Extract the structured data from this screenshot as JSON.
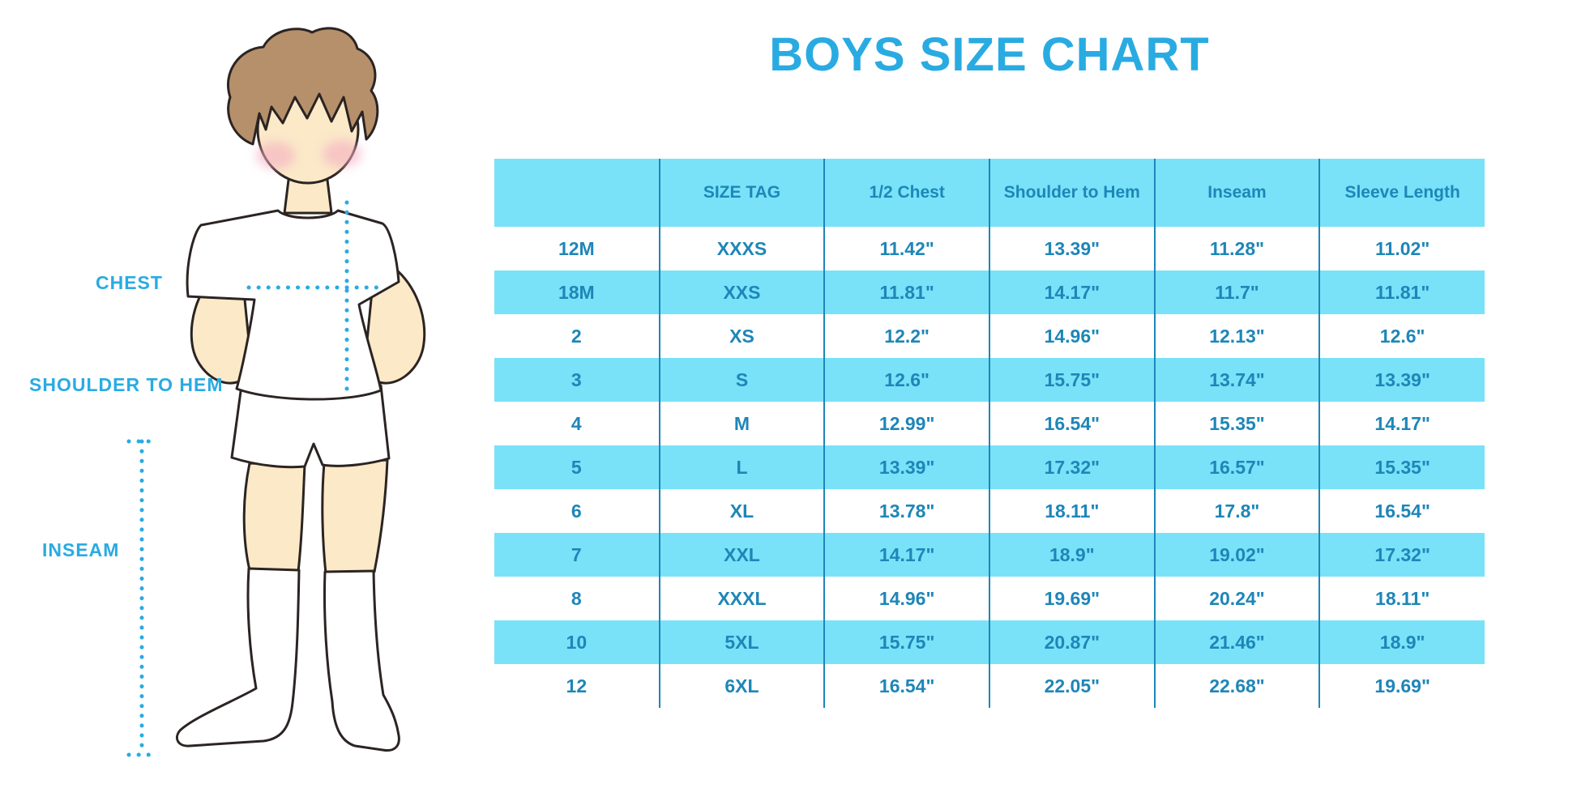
{
  "title": "BOYS SIZE CHART",
  "diagram": {
    "chest_label": "CHEST",
    "shoulder_to_hem_label": "SHOULDER TO HEM",
    "inseam_label": "INSEAM"
  },
  "chart_data": {
    "type": "table",
    "title": "BOYS SIZE CHART",
    "columns": [
      "",
      "SIZE TAG",
      "1/2 Chest",
      "Shoulder to Hem",
      "Inseam",
      "Sleeve Length"
    ],
    "rows": [
      [
        "12M",
        "XXXS",
        "11.42\"",
        "13.39\"",
        "11.28\"",
        "11.02\""
      ],
      [
        "18M",
        "XXS",
        "11.81\"",
        "14.17\"",
        "11.7\"",
        "11.81\""
      ],
      [
        "2",
        "XS",
        "12.2\"",
        "14.96\"",
        "12.13\"",
        "12.6\""
      ],
      [
        "3",
        "S",
        "12.6\"",
        "15.75\"",
        "13.74\"",
        "13.39\""
      ],
      [
        "4",
        "M",
        "12.99\"",
        "16.54\"",
        "15.35\"",
        "14.17\""
      ],
      [
        "5",
        "L",
        "13.39\"",
        "17.32\"",
        "16.57\"",
        "15.35\""
      ],
      [
        "6",
        "XL",
        "13.78\"",
        "18.11\"",
        "17.8\"",
        "16.54\""
      ],
      [
        "7",
        "XXL",
        "14.17\"",
        "18.9\"",
        "19.02\"",
        "17.32\""
      ],
      [
        "8",
        "XXXL",
        "14.96\"",
        "19.69\"",
        "20.24\"",
        "18.11\""
      ],
      [
        "10",
        "5XL",
        "15.75\"",
        "20.87\"",
        "21.46\"",
        "18.9\""
      ],
      [
        "12",
        "6XL",
        "16.54\"",
        "22.05\"",
        "22.68\"",
        "19.69\""
      ]
    ],
    "row_striping": "white / light-cyan alternating, header light-cyan",
    "grid": "vertical dividers only"
  },
  "colors": {
    "accent_blue": "#29ABE2",
    "table_text_blue": "#1E86B8",
    "row_highlight_cyan": "#79E2F8",
    "divider_blue": "#1E86B8",
    "skin": "#FBE9C8",
    "hair_brown": "#B6906B",
    "blush_pink": "#F4AEC2",
    "outline_dark": "#2B2422"
  }
}
